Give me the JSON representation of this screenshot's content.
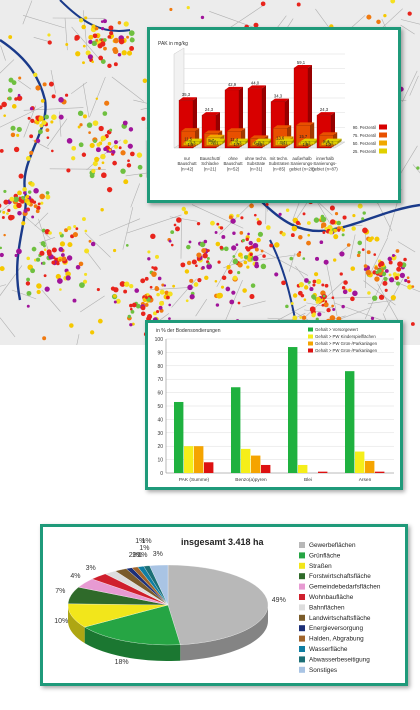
{
  "colors": {
    "panel_border": "#1f9a7a",
    "boundary": "#1a3a8a"
  },
  "chart_data": [
    {
      "type": "bar",
      "variant": "3d-stacked-percentiles",
      "ylabel": "PAK in mg/kg",
      "categories": [
        "nur Bauschutt (n=42)",
        "Bauschutt/ Schlacke (n=21)",
        "ohne Bauschutt (n=52)",
        "ohne techn. Substrate (n=31)",
        "mit techn. Substraten (n=85)",
        "außerhalb Sanierungs- gebiet (n=28)",
        "innerhalb Sanierungs- gebiet (n=87)"
      ],
      "category_lines": [
        [
          "nur",
          "Bauschutt",
          "(n=42)"
        ],
        [
          "Bauschutt/",
          "Schlacke",
          "(n=21)"
        ],
        [
          "ohne",
          "Bauschutt",
          "(n=52)"
        ],
        [
          "ohne techn.",
          "Substrate",
          "(n=31)"
        ],
        [
          "mit techn.",
          "Substraten",
          "(n=85)"
        ],
        [
          "außerhalb",
          "Sanierungs-",
          "gebiet (n=28)"
        ],
        [
          "innerhalb",
          "Sanierungs-",
          "gebiet (n=87)"
        ]
      ],
      "series": [
        {
          "name": "25. Perzentil",
          "color": "#e0d000",
          "values": [
            0.3,
            1.1,
            0.3,
            0.2,
            1.1,
            0.2,
            0.2
          ]
        },
        {
          "name": "50. Perzentil",
          "color": "#f0a800",
          "values": [
            1.5,
            5.6,
            1.7,
            0.8,
            4.4,
            1.8,
            1.2
          ]
        },
        {
          "name": "75. Perzentil",
          "color": "#e85000",
          "values": [
            11.5,
            9.7,
            11.4,
            6.1,
            13.6,
            15.7,
            8.4
          ]
        },
        {
          "name": "90. Perzentil",
          "color": "#d80000",
          "values": [
            35.3,
            24.3,
            42.9,
            44.0,
            34.3,
            59.1,
            24.3
          ]
        }
      ],
      "value_labels": [
        [
          "0,3",
          "1,5",
          "11,5",
          "35,3"
        ],
        [
          "1,1",
          "5,6",
          "9,7",
          "24,3"
        ],
        [
          "0,3",
          "1,7",
          "11,4",
          "42,9"
        ],
        [
          "0,2",
          "0,8",
          "6,1",
          "44,0"
        ],
        [
          "1,1",
          "4,4",
          "13,6",
          "34,3"
        ],
        [
          "0,2",
          "1,8",
          "15,7",
          "59,1"
        ],
        [
          "0,2",
          "1,2",
          "8,4",
          "24,3"
        ]
      ],
      "legend": [
        "90. Perzentil",
        "75. Perzentil",
        "50. Perzentil",
        "25. Perzentil"
      ],
      "legend_position": "right"
    },
    {
      "type": "bar",
      "ylabel": "in % der Bodensondierungen",
      "ylim": [
        0,
        100
      ],
      "yticks": [
        0,
        10,
        20,
        30,
        40,
        50,
        60,
        70,
        80,
        90,
        100
      ],
      "categories": [
        "PAK (Summe)",
        "Benzo(a)pyren",
        "Blei",
        "Arsen"
      ],
      "series": [
        {
          "name": "Gehalt > Vorsorgewert",
          "color": "#1fb13f",
          "values": [
            53,
            64,
            94,
            76
          ]
        },
        {
          "name": "Gehalt > PW Kinderspielflächen",
          "color": "#f5ee1a",
          "values": [
            20,
            18,
            6,
            16
          ]
        },
        {
          "name": "Gehalt > PW Grün-/Parkanlagen",
          "color": "#f5a400",
          "values": [
            20,
            13,
            0,
            9
          ]
        },
        {
          "name": "Gehalt > PW Grün-/Parkanlagen",
          "color": "#dd1111",
          "values": [
            8,
            6,
            1,
            1
          ]
        }
      ],
      "legend_position": "top-right",
      "grid": true
    },
    {
      "type": "pie",
      "variant": "3d",
      "title": "insgesamt 3.418 ha",
      "slices": [
        {
          "label": "Gewerbeflächen",
          "value": 49,
          "text": "49%",
          "color": "#b8b8b8"
        },
        {
          "label": "Grünfläche",
          "value": 18,
          "text": "18%",
          "color": "#26a544"
        },
        {
          "label": "Straßen",
          "value": 10,
          "text": "10%",
          "color": "#f2e61b"
        },
        {
          "label": "Forstwirtschaftsfläche",
          "value": 7,
          "text": "7%",
          "color": "#2f6a2a"
        },
        {
          "label": "Gemeindebedarfsflächen",
          "value": 4,
          "text": "4%",
          "color": "#e79ad2"
        },
        {
          "label": "Wohnbaufläche",
          "value": 3,
          "text": "3%",
          "color": "#cf1f2d"
        },
        {
          "label": "Bahnflächen",
          "value": 2,
          "text": "2%",
          "color": "#dddddd"
        },
        {
          "label": "Landwirtschaftsfläche",
          "value": 2,
          "text": "2%",
          "color": "#7a5b2a"
        },
        {
          "label": "Energieversorgung",
          "value": 1,
          "text": "1%",
          "color": "#1c2f77"
        },
        {
          "label": "Halden, Abgrabung",
          "value": 1,
          "text": "1%",
          "color": "#a0642a"
        },
        {
          "label": "Wasserfläche",
          "value": 1,
          "text": "1%",
          "color": "#0f7ea3"
        },
        {
          "label": "Abwasserbeseitigung",
          "value": 1,
          "text": "1%",
          "color": "#1b6f76"
        },
        {
          "label": "Sonstiges",
          "value": 3,
          "text": "3%",
          "color": "#a9c4e4"
        }
      ],
      "legend_position": "right"
    }
  ]
}
